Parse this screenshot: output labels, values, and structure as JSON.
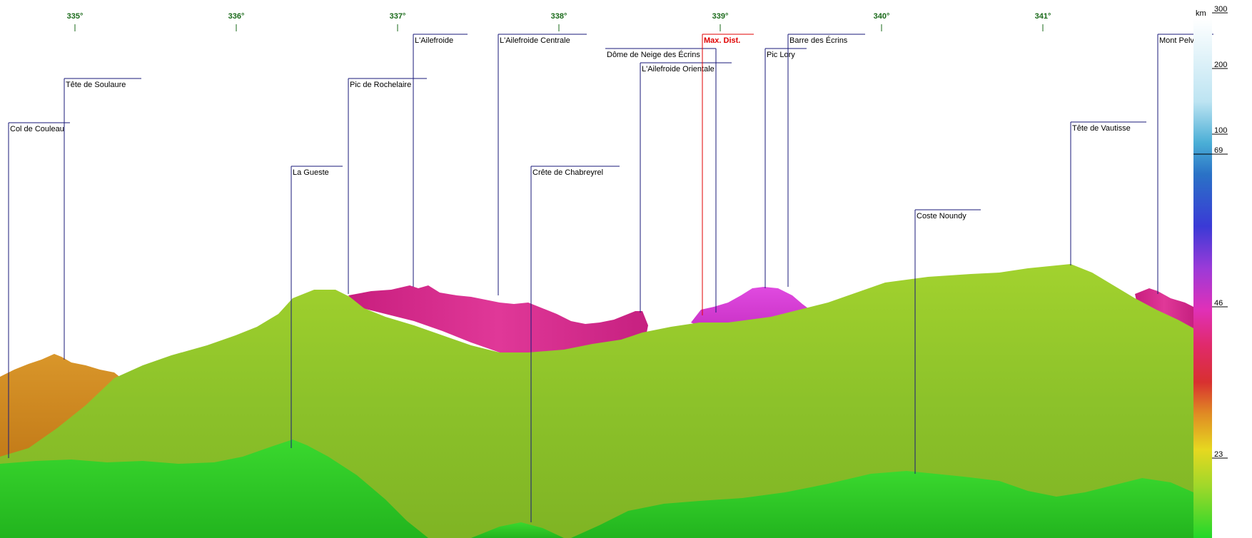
{
  "bearings": [
    "335°",
    "336°",
    "337°",
    "338°",
    "339°",
    "340°",
    "341°"
  ],
  "peaks": [
    {
      "name": "Col de Couleau"
    },
    {
      "name": "Tête de Soulaure"
    },
    {
      "name": "La Gueste"
    },
    {
      "name": "Pic de Rochelaire"
    },
    {
      "name": "L'Ailefroide"
    },
    {
      "name": "L'Ailefroide Centrale"
    },
    {
      "name": "Crête de Chabreyrel"
    },
    {
      "name": "Dôme de Neige des Écrins"
    },
    {
      "name": "L'Ailefroide Orientale"
    },
    {
      "name": "Max. Dist."
    },
    {
      "name": "Pic Lory"
    },
    {
      "name": "Barre des Écrins"
    },
    {
      "name": "Coste Noundy"
    },
    {
      "name": "Tête de Vautisse"
    },
    {
      "name": "Mont Pelvoux"
    }
  ],
  "scale": {
    "unit": "km",
    "ticks": [
      "300",
      "200",
      "100",
      "69",
      "46",
      "23"
    ]
  },
  "colors": {
    "leader_line": "#1a1a7a",
    "max_dist": "#e00000",
    "bearing": "#1a6a1a",
    "ridge_far_pink": "#d62a8c",
    "ridge_magenta": "#d23ad0",
    "ridge_orange": "#d08a22",
    "ridge_yellowgreen": "#8ccc28",
    "ridge_green": "#2ed02a"
  }
}
